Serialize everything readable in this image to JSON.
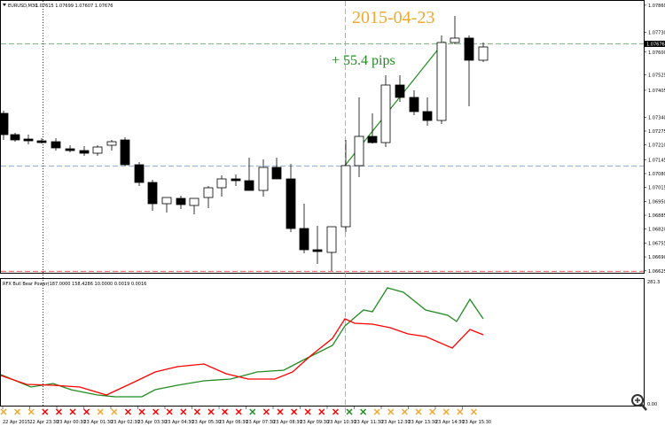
{
  "main_chart": {
    "symbol_label": "EURUSD,M30",
    "ohlc_text": "1.07615 1.07699 1.07607 1.07676",
    "date_annotation": "2015-04-23",
    "pips_annotation": "+ 55.4 pips",
    "current_price": "1.07676",
    "price_ticks": [
      "1.07860",
      "1.07730",
      "1.07600",
      "1.07525",
      "1.07405",
      "1.07340",
      "1.07275",
      "1.07210",
      "1.07145",
      "1.07080",
      "1.07015",
      "1.06950",
      "1.06885",
      "1.06820",
      "1.06755",
      "1.06690",
      "1.06625"
    ]
  },
  "indicator": {
    "header_text": "RFX Bull Bear Power(187.0000 158.4286 10.0000 0.0019 0.0016",
    "top_value": "281.3",
    "bottom_value": "0.00"
  },
  "time_axis": {
    "labels": [
      "22 Apr 2015",
      "22 Apr 23:30",
      "23 Apr 00:30",
      "23 Apr 01:30",
      "23 Apr 02:30",
      "23 Apr 03:30",
      "23 Apr 04:30",
      "23 Apr 05:30",
      "23 Apr 06:30",
      "23 Apr 07:30",
      "23 Apr 08:30",
      "23 Apr 09:30",
      "23 Apr 10:30",
      "23 Apr 11:30",
      "23 Apr 12:30",
      "23 Apr 13:30",
      "23 Apr 14:30",
      "23 Apr 15:30"
    ]
  },
  "signals": [
    "buy",
    "buy",
    "buy",
    "sell",
    "sell",
    "sell",
    "sell",
    "buy",
    "buy",
    "sell",
    "sell",
    "sell",
    "sell",
    "sell",
    "sell",
    "sell",
    "sell",
    "sell",
    "buy",
    "sell",
    "sell",
    "sell",
    "sell",
    "sell",
    "sell",
    "buy",
    "buy",
    "buy",
    "buy",
    "buy",
    "buy",
    "buy",
    "buy",
    "buy",
    "buy"
  ],
  "colors": {
    "bull_line": "#228b22",
    "bear_line": "#ff0000",
    "annotation_orange": "#f0a830",
    "annotation_green": "#228b22",
    "hline_green": "#8fbc8f",
    "hline_blue": "#9fb7d6",
    "hline_red": "#f07070"
  },
  "zoom_icon": "zoom-magnifier-icon"
}
